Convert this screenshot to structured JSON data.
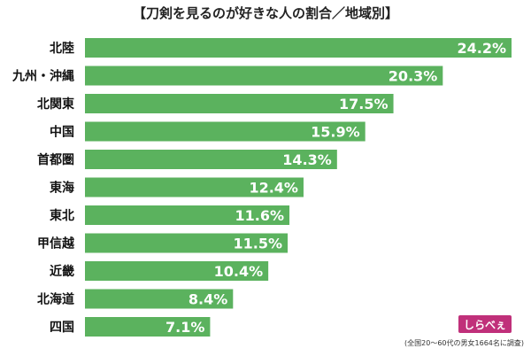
{
  "chart_data": {
    "type": "bar",
    "orientation": "horizontal",
    "title": "【刀剣を見るのが好きな人の割合／地域別】",
    "categories": [
      "北陸",
      "九州・沖縄",
      "北関東",
      "中国",
      "首都圏",
      "東海",
      "東北",
      "甲信越",
      "近畿",
      "北海道",
      "四国"
    ],
    "values": [
      24.2,
      20.3,
      17.5,
      15.9,
      14.3,
      12.4,
      11.6,
      11.5,
      10.4,
      8.4,
      7.1
    ],
    "value_labels": [
      "24.2%",
      "20.3%",
      "17.5%",
      "15.9%",
      "14.3%",
      "12.4%",
      "11.6%",
      "11.5%",
      "10.4%",
      "8.4%",
      "7.1%"
    ],
    "xlim": [
      0,
      24.2
    ],
    "grid": false,
    "legend": "none",
    "bar_color": "#5bb25e"
  },
  "footnote": "(全国20〜60代の男女1664名に調査)",
  "logo": {
    "text": "しらべぇ",
    "color": "#c0307a",
    "icon": "sirabee-logo-icon"
  }
}
